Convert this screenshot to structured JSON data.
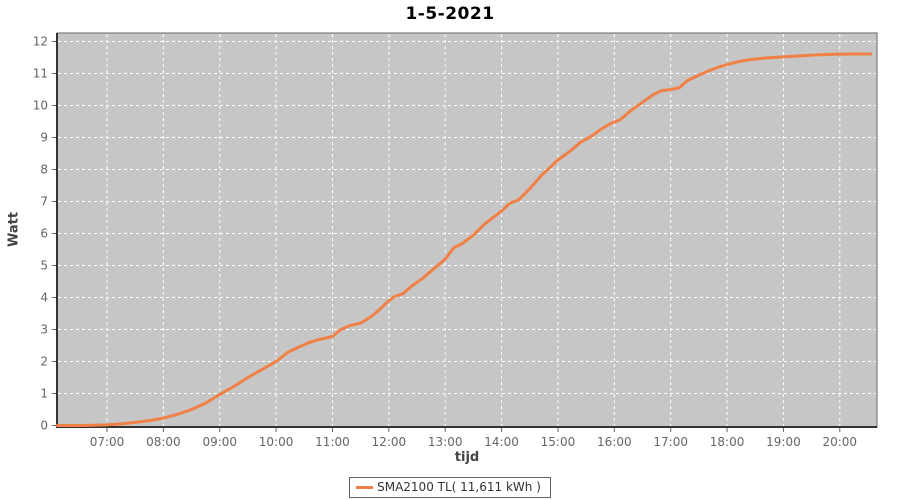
{
  "title": "1-5-2021",
  "colors": {
    "series": "#F08045",
    "plot_background": "#C6C6C6",
    "gridline": "#FFFFFF",
    "plot_border": "#666666",
    "axis_line": "#333333",
    "tick_mark": "#666666",
    "tick_label": "#666666",
    "axis_title": "#444444",
    "title_text": "#000000",
    "legend_border": "#666666",
    "legend_text": "#333333"
  },
  "axes": {
    "y": {
      "label": "Watt",
      "tick_values": [
        0,
        1,
        2,
        3,
        4,
        5,
        6,
        7,
        8,
        9,
        10,
        11,
        12
      ]
    },
    "x": {
      "label": "tijd",
      "tick_hours": [
        7,
        8,
        9,
        10,
        11,
        12,
        13,
        14,
        15,
        16,
        17,
        18,
        19,
        20
      ],
      "tick_labels": [
        "07:00",
        "08:00",
        "09:00",
        "10:00",
        "11:00",
        "12:00",
        "13:00",
        "14:00",
        "15:00",
        "16:00",
        "17:00",
        "18:00",
        "19:00",
        "20:00"
      ]
    }
  },
  "legend": {
    "label": "SMA2100 TL( 11,611 kWh )"
  },
  "chart_data": {
    "type": "line",
    "title": "1-5-2021",
    "xlabel": "tijd",
    "ylabel": "Watt",
    "grid": true,
    "legend_position": "bottom",
    "x_unit": "hour_of_day",
    "xlim": [
      6.113,
      20.66
    ],
    "ylim": [
      0,
      12.3
    ],
    "series": [
      {
        "name": "SMA2100 TL",
        "total_energy_label": "11,611 kWh",
        "color": "#F08045",
        "x": [
          6.12,
          6.6,
          7.0,
          7.3,
          7.6,
          7.8,
          8.0,
          8.25,
          8.5,
          8.75,
          9.0,
          9.25,
          9.5,
          9.7,
          9.85,
          10.0,
          10.2,
          10.4,
          10.6,
          10.75,
          11.0,
          11.15,
          11.3,
          11.5,
          11.7,
          11.85,
          12.0,
          12.1,
          12.25,
          12.4,
          12.6,
          12.8,
          13.0,
          13.15,
          13.3,
          13.5,
          13.7,
          13.85,
          14.0,
          14.15,
          14.3,
          14.5,
          14.7,
          14.85,
          15.0,
          15.2,
          15.4,
          15.6,
          15.8,
          15.95,
          16.1,
          16.3,
          16.5,
          16.7,
          16.85,
          17.0,
          17.15,
          17.3,
          17.5,
          17.7,
          17.85,
          18.0,
          18.2,
          18.4,
          18.6,
          18.8,
          19.0,
          19.3,
          19.6,
          19.9,
          20.2,
          20.55
        ],
        "y": [
          0,
          0,
          0.02,
          0.06,
          0.12,
          0.17,
          0.23,
          0.35,
          0.5,
          0.7,
          0.97,
          1.22,
          1.5,
          1.7,
          1.85,
          2.0,
          2.28,
          2.45,
          2.6,
          2.68,
          2.78,
          3.0,
          3.12,
          3.2,
          3.42,
          3.65,
          3.9,
          4.03,
          4.12,
          4.35,
          4.6,
          4.9,
          5.2,
          5.55,
          5.68,
          5.95,
          6.3,
          6.5,
          6.7,
          6.95,
          7.05,
          7.4,
          7.8,
          8.05,
          8.3,
          8.55,
          8.85,
          9.05,
          9.3,
          9.45,
          9.55,
          9.85,
          10.1,
          10.35,
          10.47,
          10.5,
          10.55,
          10.78,
          10.95,
          11.1,
          11.2,
          11.28,
          11.37,
          11.43,
          11.47,
          11.5,
          11.52,
          11.55,
          11.58,
          11.6,
          11.61,
          11.61
        ]
      }
    ]
  }
}
